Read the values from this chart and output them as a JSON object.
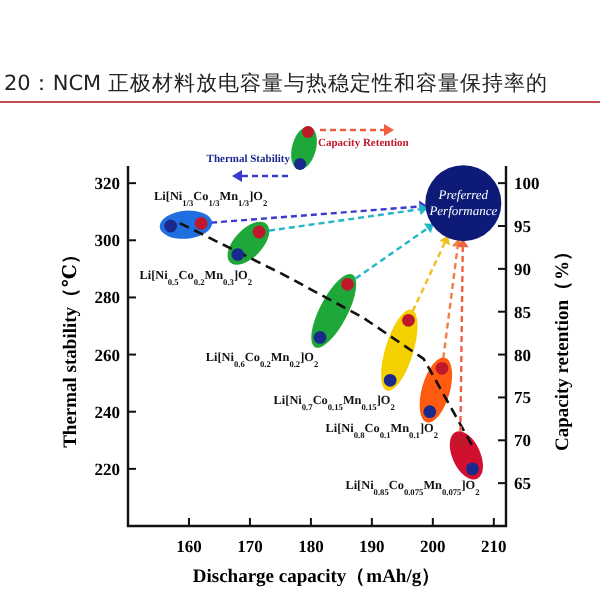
{
  "chart_data": {
    "type": "scatter",
    "title": "20：NCM 正极材料放电容量与热稳定性和容量保持率的",
    "xlabel": "Discharge capacity（mAh/g）",
    "ylabel": "Thermal stability（℃）",
    "y2label": "Capacity retention（%）",
    "xlim": [
      150,
      212
    ],
    "xticks": [
      160,
      170,
      180,
      190,
      200,
      210
    ],
    "ylim": [
      200,
      326
    ],
    "yticks": [
      220,
      240,
      260,
      280,
      300,
      320
    ],
    "y2lim": [
      60,
      102
    ],
    "y2ticks": [
      65,
      70,
      75,
      80,
      85,
      90,
      95,
      100
    ],
    "legend": "top",
    "marker": "circle",
    "series": [
      {
        "name": "Thermal Stability",
        "color": "#1a2a8c",
        "x": [
          157,
          168,
          181.5,
          193,
          199.5,
          206.5
        ],
        "values": [
          305,
          295,
          266,
          251,
          240,
          220
        ]
      },
      {
        "name": "Capacity Retention",
        "color": "#c0182a",
        "axis": "y2",
        "x": [
          162,
          171.5,
          186,
          196,
          201.5,
          204.5
        ],
        "values": [
          95.3,
          94.3,
          88.2,
          84,
          78.4,
          69.8
        ]
      },
      {
        "type": "line",
        "marker": "none",
        "color": "#111111",
        "line_style": "dashed",
        "x": [
          158.5,
          175.5,
          188.5,
          198.5,
          206.5
        ],
        "values": [
          306,
          288,
          273,
          258.5,
          228
        ]
      }
    ],
    "annotations": [
      {
        "text": "Li[Ni$_{1/3}$Co$_{1/3}$Mn$_{1/3}$]O$_{2}$",
        "x": 157,
        "y": 305
      },
      {
        "text": "Li[Ni$_{0.5}$Co$_{0.2}$Mn$_{0.3}$]O$_{2}$",
        "x": 168,
        "y": 295
      },
      {
        "text": "Li[Ni$_{0.6}$Co$_{0.2}$Mn$_{0.2}$]O$_{2}$",
        "x": 181.5,
        "y": 266
      },
      {
        "text": "Li[Ni$_{0.7}$Co$_{0.15}$Mn$_{0.15}$]O$_{2}$",
        "x": 193,
        "y": 251
      },
      {
        "text": "Li[Ni$_{0.8}$Co$_{0.1}$Mn$_{0.1}$]O$_{2}$",
        "x": 199.5,
        "y": 240
      },
      {
        "text": "Li[Ni$_{0.85}$Co$_{0.075}$Mn$_{0.075}$]O$_{2}$",
        "x": 206.5,
        "y": 220
      },
      {
        "text": "Preferred Performance",
        "x": 205,
        "y": 313
      }
    ]
  }
}
